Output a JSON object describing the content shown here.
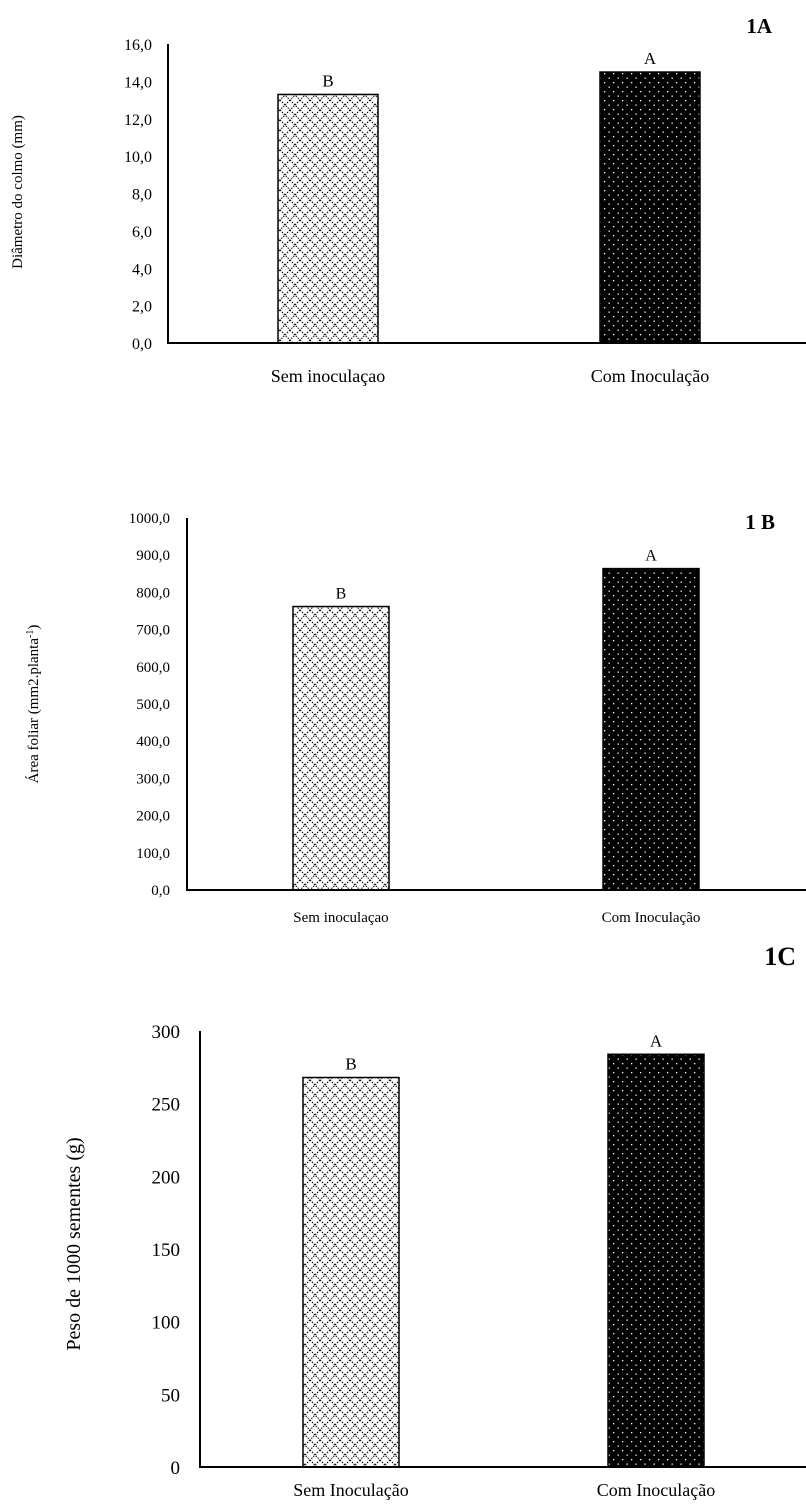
{
  "chart_data": [
    {
      "type": "bar",
      "panel_label": "1A",
      "ylabel": "Diâmetro do colmo (mm)",
      "ylabel_sup": "",
      "ylabel_tail": "",
      "categories": [
        "Sem inoculaçao",
        "Com Inoculação"
      ],
      "values": [
        13.3,
        14.5
      ],
      "bar_letters": [
        "B",
        "A"
      ],
      "bar_patterns": [
        "crosshatch",
        "dots"
      ],
      "ylim": [
        0,
        16
      ],
      "yticks": [
        "0,0",
        "2,0",
        "4,0",
        "6,0",
        "8,0",
        "10,0",
        "12,0",
        "14,0",
        "16,0"
      ],
      "grid": false
    },
    {
      "type": "bar",
      "panel_label": "1 B",
      "ylabel": "Área foliar (mm2.planta",
      "ylabel_sup": "-1",
      "ylabel_tail": ")",
      "categories": [
        "Sem inoculaçao",
        "Com Inoculação"
      ],
      "values": [
        762,
        864
      ],
      "bar_letters": [
        "B",
        "A"
      ],
      "bar_patterns": [
        "crosshatch",
        "dots"
      ],
      "ylim": [
        0,
        1000
      ],
      "yticks": [
        "0,0",
        "100,0",
        "200,0",
        "300,0",
        "400,0",
        "500,0",
        "600,0",
        "700,0",
        "800,0",
        "900,0",
        "1000,0"
      ],
      "grid": false
    },
    {
      "type": "bar",
      "panel_label": "1C",
      "ylabel": "Peso de 1000 sementes (g)",
      "ylabel_sup": "",
      "ylabel_tail": "",
      "categories": [
        "Sem Inoculação",
        "Com Inoculação"
      ],
      "values": [
        268,
        284
      ],
      "bar_letters": [
        "B",
        "A"
      ],
      "bar_patterns": [
        "crosshatch",
        "dots"
      ],
      "ylim": [
        0,
        300
      ],
      "yticks": [
        "0",
        "50",
        "100",
        "150",
        "200",
        "250",
        "300"
      ],
      "grid": false
    }
  ]
}
